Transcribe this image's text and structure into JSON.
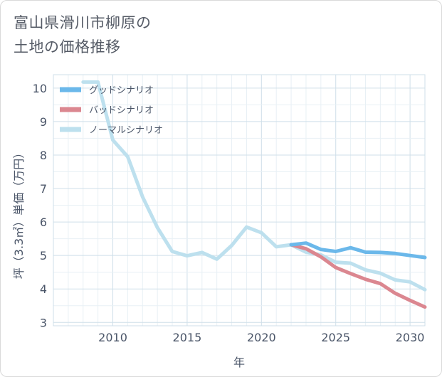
{
  "chart_data": {
    "type": "line",
    "title": [
      "富山県滑川市柳原の",
      "土地の価格推移"
    ],
    "xlabel": "年",
    "ylabel": "坪（3.3㎡）単価（万円）",
    "xlim": [
      2006,
      2031
    ],
    "ylim": [
      2.9,
      10.4
    ],
    "xticks": [
      2010,
      2015,
      2020,
      2025,
      2030
    ],
    "yticks": [
      3,
      4,
      5,
      6,
      7,
      8,
      9,
      10
    ],
    "grid": true,
    "legend_position": "top-left",
    "series": [
      {
        "name": "グッドシナリオ",
        "color": "#6bb8ea",
        "x": [
          2022,
          2023,
          2024,
          2025,
          2026,
          2027,
          2028,
          2029,
          2030,
          2031
        ],
        "y": [
          5.32,
          5.37,
          5.18,
          5.12,
          5.23,
          5.1,
          5.09,
          5.06,
          5.0,
          4.94
        ]
      },
      {
        "name": "バッドシナリオ",
        "color": "#db8790",
        "x": [
          2022,
          2023,
          2024,
          2025,
          2026,
          2027,
          2028,
          2029,
          2030,
          2031
        ],
        "y": [
          5.32,
          5.2,
          4.96,
          4.64,
          4.46,
          4.29,
          4.16,
          3.87,
          3.66,
          3.46
        ]
      },
      {
        "name": "ノーマルシナリオ",
        "color": "#bde0ee",
        "x": [
          2008,
          2009,
          2010,
          2011,
          2012,
          2013,
          2014,
          2015,
          2016,
          2017,
          2018,
          2019,
          2020,
          2021,
          2022,
          2023,
          2024,
          2025,
          2026,
          2027,
          2028,
          2029,
          2030,
          2031
        ],
        "y": [
          10.18,
          10.18,
          8.45,
          7.95,
          6.75,
          5.83,
          5.12,
          4.99,
          5.09,
          4.89,
          5.3,
          5.85,
          5.68,
          5.26,
          5.32,
          5.1,
          5.02,
          4.8,
          4.77,
          4.57,
          4.47,
          4.27,
          4.21,
          3.98
        ]
      }
    ]
  }
}
